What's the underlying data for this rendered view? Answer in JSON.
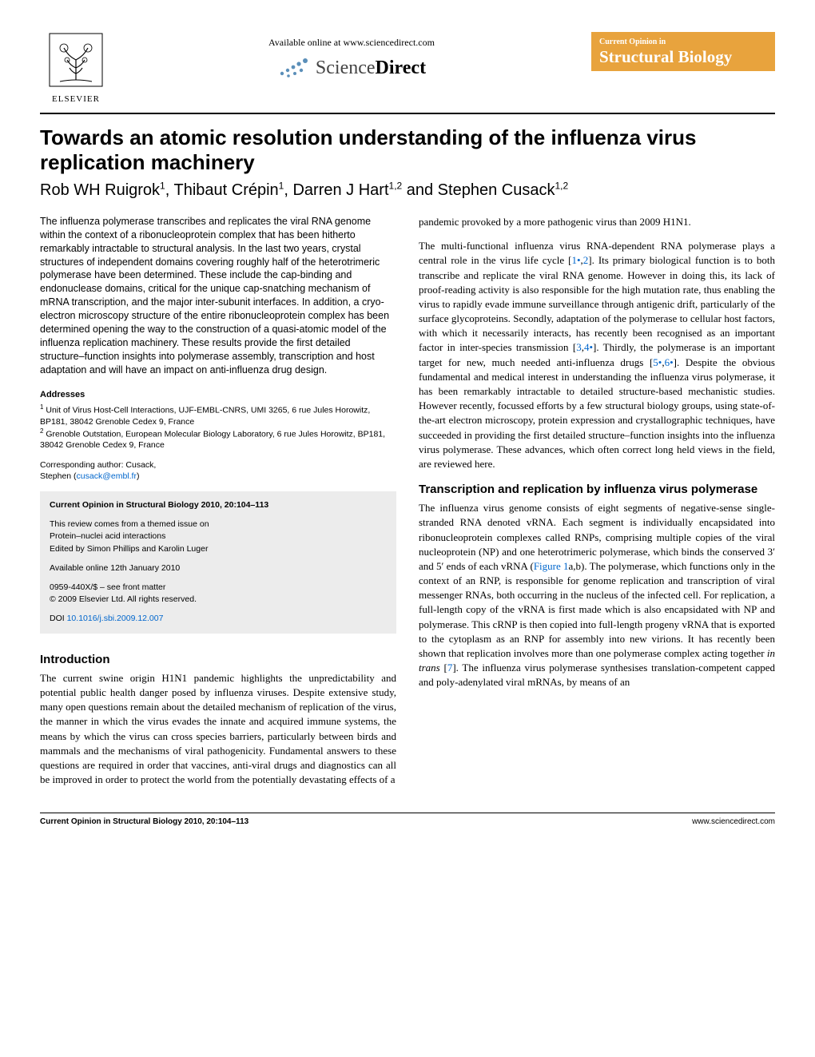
{
  "header": {
    "publisher_name": "ELSEVIER",
    "available_text": "Available online at www.sciencedirect.com",
    "sd_brand_light": "Science",
    "sd_brand_bold": "Direct",
    "journal_line1": "Current Opinion in",
    "journal_line2": "Structural Biology",
    "badge_bg": "#e8a33d",
    "sd_dot_color": "#5b8fb9"
  },
  "article": {
    "title": "Towards an atomic resolution understanding of the influenza virus replication machinery",
    "authors_html": "Rob WH Ruigrok<sup>1</sup>, Thibaut Crépin<sup>1</sup>, Darren J Hart<sup>1,2</sup> and Stephen Cusack<sup>1,2</sup>"
  },
  "abstract": "The influenza polymerase transcribes and replicates the viral RNA genome within the context of a ribonucleoprotein complex that has been hitherto remarkably intractable to structural analysis. In the last two years, crystal structures of independent domains covering roughly half of the heterotrimeric polymerase have been determined. These include the cap-binding and endonuclease domains, critical for the unique cap-snatching mechanism of mRNA transcription, and the major inter-subunit interfaces. In addition, a cryo-electron microscopy structure of the entire ribonucleoprotein complex has been determined opening the way to the construction of a quasi-atomic model of the influenza replication machinery. These results provide the first detailed structure–function insights into polymerase assembly, transcription and host adaptation and will have an impact on anti-influenza drug design.",
  "addresses": {
    "heading": "Addresses",
    "items": [
      "Unit of Virus Host-Cell Interactions, UJF-EMBL-CNRS, UMI 3265, 6 rue Jules Horowitz, BP181, 38042 Grenoble Cedex 9, France",
      "Grenoble Outstation, European Molecular Biology Laboratory, 6 rue Jules Horowitz, BP181, 38042 Grenoble Cedex 9, France"
    ]
  },
  "corresponding": {
    "label": "Corresponding author: Cusack,",
    "name": "Stephen",
    "email": "cusack@embl.fr"
  },
  "infobox": {
    "citation": "Current Opinion in Structural Biology 2010, 20:104–113",
    "themed1": "This review comes from a themed issue on",
    "themed2": "Protein–nuclei acid interactions",
    "edited": "Edited by Simon Phillips and Karolin Luger",
    "available": "Available online 12th January 2010",
    "issn": "0959-440X/$ – see front matter",
    "copyright": "© 2009 Elsevier Ltd. All rights reserved.",
    "doi_label": "DOI",
    "doi": "10.1016/j.sbi.2009.12.007"
  },
  "sections": {
    "intro_heading": "Introduction",
    "intro_p1": "The current swine origin H1N1 pandemic highlights the unpredictability and potential public health danger posed by influenza viruses. Despite extensive study, many open questions remain about the detailed mechanism of replication of the virus, the manner in which the virus evades the innate and acquired immune systems, the means by which the virus can cross species barriers, particularly between birds and mammals and the mechanisms of viral pathogenicity. Fundamental answers to these questions are required in order that vaccines, anti-viral drugs and diagnostics can all be improved in order to protect the world from the potentially devastating effects of a",
    "right_p1_prefix": "pandemic provoked by a more pathogenic virus than 2009 H1N1.",
    "right_p2": "The multi-functional influenza virus RNA-dependent RNA polymerase plays a central role in the virus life cycle [1•,2]. Its primary biological function is to both transcribe and replicate the viral RNA genome. However in doing this, its lack of proof-reading activity is also responsible for the high mutation rate, thus enabling the virus to rapidly evade immune surveillance through antigenic drift, particularly of the surface glycoproteins. Secondly, adaptation of the polymerase to cellular host factors, with which it necessarily interacts, has recently been recognised as an important factor in inter-species transmission [3,4•]. Thirdly, the polymerase is an important target for new, much needed anti-influenza drugs [5•,6•]. Despite the obvious fundamental and medical interest in understanding the influenza virus polymerase, it has been remarkably intractable to detailed structure-based mechanistic studies. However recently, focussed efforts by a few structural biology groups, using state-of-the-art electron microscopy, protein expression and crystallographic techniques, have succeeded in providing the first detailed structure–function insights into the influenza virus polymerase. These advances, which often correct long held views in the field, are reviewed here.",
    "transcription_heading": "Transcription and replication by influenza virus polymerase",
    "transcription_p1": "The influenza virus genome consists of eight segments of negative-sense single-stranded RNA denoted vRNA. Each segment is individually encapsidated into ribonucleoprotein complexes called RNPs, comprising multiple copies of the viral nucleoprotein (NP) and one heterotrimeric polymerase, which binds the conserved 3′ and 5′ ends of each vRNA (Figure 1a,b). The polymerase, which functions only in the context of an RNP, is responsible for genome replication and transcription of viral messenger RNAs, both occurring in the nucleus of the infected cell. For replication, a full-length copy of the vRNA is first made which is also encapsidated with NP and polymerase. This cRNP is then copied into full-length progeny vRNA that is exported to the cytoplasm as an RNP for assembly into new virions. It has recently been shown that replication involves more than one polymerase complex acting together in trans [7]. The influenza virus polymerase synthesises translation-competent capped and poly-adenylated viral mRNAs, by means of an"
  },
  "footer": {
    "left": "Current Opinion in Structural Biology 2010, 20:104–113",
    "right": "www.sciencedirect.com"
  },
  "refs": {
    "r1": "1•",
    "r2": "2",
    "r3": "3",
    "r4": "4•",
    "r5": "5•",
    "r6": "6•",
    "r7": "7",
    "fig1": "Figure 1"
  }
}
